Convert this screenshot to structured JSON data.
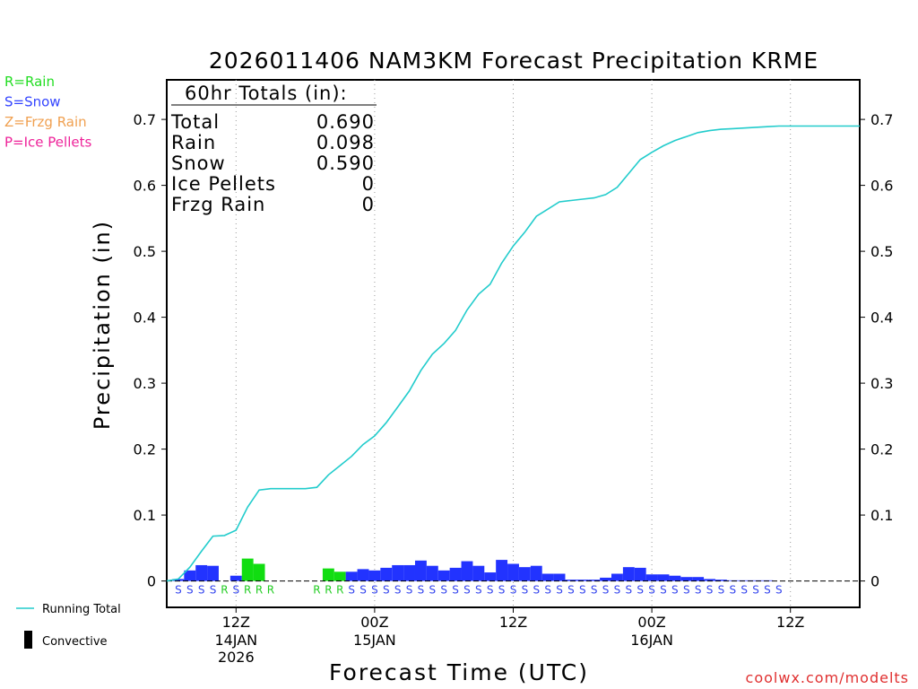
{
  "chart_data": {
    "type": "bar",
    "title": "2026011406 NAM3KM Forecast Precipitation KRME",
    "ylabel": "Precipitation (in)",
    "xlabel": "Forecast Time (UTC)",
    "ylim": [
      -0.04,
      0.76
    ],
    "xlim": [
      6,
      66
    ],
    "yticks": [
      0,
      0.1,
      0.2,
      0.3,
      0.4,
      0.5,
      0.6,
      0.7
    ],
    "ytick_labels": [
      "0",
      "0.1",
      "0.2",
      "0.3",
      "0.4",
      "0.5",
      "0.6",
      "0.7"
    ],
    "xticks": [
      {
        "hour": 12,
        "label": "12Z",
        "date": "14JAN",
        "year": "2026"
      },
      {
        "hour": 24,
        "label": "00Z",
        "date": "15JAN",
        "year": ""
      },
      {
        "hour": 36,
        "label": "12Z",
        "date": "",
        "year": ""
      },
      {
        "hour": 48,
        "label": "00Z",
        "date": "16JAN",
        "year": ""
      },
      {
        "hour": 60,
        "label": "12Z",
        "date": "",
        "year": ""
      }
    ],
    "hourly_precip": [
      {
        "hour": 7,
        "value": 0.003,
        "type": "S"
      },
      {
        "hour": 8,
        "value": 0.016,
        "type": "S"
      },
      {
        "hour": 9,
        "value": 0.024,
        "type": "S"
      },
      {
        "hour": 10,
        "value": 0.023,
        "type": "S"
      },
      {
        "hour": 11,
        "value": 0.0,
        "type": "R"
      },
      {
        "hour": 12,
        "value": 0.008,
        "type": "S"
      },
      {
        "hour": 13,
        "value": 0.034,
        "type": "R"
      },
      {
        "hour": 14,
        "value": 0.026,
        "type": "R"
      },
      {
        "hour": 15,
        "value": 0.0,
        "type": "R"
      },
      {
        "hour": 16,
        "value": 0.0,
        "type": ""
      },
      {
        "hour": 17,
        "value": 0.0,
        "type": ""
      },
      {
        "hour": 18,
        "value": 0.0,
        "type": ""
      },
      {
        "hour": 19,
        "value": 0.0,
        "type": "R"
      },
      {
        "hour": 20,
        "value": 0.019,
        "type": "R"
      },
      {
        "hour": 21,
        "value": 0.014,
        "type": "R"
      },
      {
        "hour": 22,
        "value": 0.014,
        "type": "S"
      },
      {
        "hour": 23,
        "value": 0.018,
        "type": "S"
      },
      {
        "hour": 24,
        "value": 0.016,
        "type": "S"
      },
      {
        "hour": 25,
        "value": 0.02,
        "type": "S"
      },
      {
        "hour": 26,
        "value": 0.024,
        "type": "S"
      },
      {
        "hour": 27,
        "value": 0.024,
        "type": "S"
      },
      {
        "hour": 28,
        "value": 0.031,
        "type": "S"
      },
      {
        "hour": 29,
        "value": 0.023,
        "type": "S"
      },
      {
        "hour": 30,
        "value": 0.016,
        "type": "S"
      },
      {
        "hour": 31,
        "value": 0.02,
        "type": "S"
      },
      {
        "hour": 32,
        "value": 0.03,
        "type": "S"
      },
      {
        "hour": 33,
        "value": 0.023,
        "type": "S"
      },
      {
        "hour": 34,
        "value": 0.013,
        "type": "S"
      },
      {
        "hour": 35,
        "value": 0.032,
        "type": "S"
      },
      {
        "hour": 36,
        "value": 0.026,
        "type": "S"
      },
      {
        "hour": 37,
        "value": 0.021,
        "type": "S"
      },
      {
        "hour": 38,
        "value": 0.023,
        "type": "S"
      },
      {
        "hour": 39,
        "value": 0.011,
        "type": "S"
      },
      {
        "hour": 40,
        "value": 0.011,
        "type": "S"
      },
      {
        "hour": 41,
        "value": 0.002,
        "type": "S"
      },
      {
        "hour": 42,
        "value": 0.002,
        "type": "S"
      },
      {
        "hour": 43,
        "value": 0.002,
        "type": "S"
      },
      {
        "hour": 44,
        "value": 0.005,
        "type": "S"
      },
      {
        "hour": 45,
        "value": 0.011,
        "type": "S"
      },
      {
        "hour": 46,
        "value": 0.021,
        "type": "S"
      },
      {
        "hour": 47,
        "value": 0.02,
        "type": "S"
      },
      {
        "hour": 48,
        "value": 0.01,
        "type": "S"
      },
      {
        "hour": 49,
        "value": 0.01,
        "type": "S"
      },
      {
        "hour": 50,
        "value": 0.008,
        "type": "S"
      },
      {
        "hour": 51,
        "value": 0.006,
        "type": "S"
      },
      {
        "hour": 52,
        "value": 0.006,
        "type": "S"
      },
      {
        "hour": 53,
        "value": 0.003,
        "type": "S"
      },
      {
        "hour": 54,
        "value": 0.002,
        "type": "S"
      },
      {
        "hour": 55,
        "value": 0.001,
        "type": "S"
      },
      {
        "hour": 56,
        "value": 0.001,
        "type": "S"
      },
      {
        "hour": 57,
        "value": 0.001,
        "type": "S"
      },
      {
        "hour": 58,
        "value": 0.001,
        "type": "S"
      }
    ],
    "running_total": [
      [
        6,
        0.0
      ],
      [
        7,
        0.003
      ],
      [
        8,
        0.021
      ],
      [
        9,
        0.045
      ],
      [
        10,
        0.068
      ],
      [
        11,
        0.069
      ],
      [
        12,
        0.077
      ],
      [
        13,
        0.112
      ],
      [
        14,
        0.138
      ],
      [
        15,
        0.14
      ],
      [
        16,
        0.14
      ],
      [
        17,
        0.14
      ],
      [
        18,
        0.14
      ],
      [
        19,
        0.142
      ],
      [
        20,
        0.161
      ],
      [
        21,
        0.175
      ],
      [
        22,
        0.189
      ],
      [
        23,
        0.207
      ],
      [
        24,
        0.22
      ],
      [
        25,
        0.24
      ],
      [
        26,
        0.264
      ],
      [
        27,
        0.288
      ],
      [
        28,
        0.319
      ],
      [
        29,
        0.344
      ],
      [
        30,
        0.36
      ],
      [
        31,
        0.38
      ],
      [
        32,
        0.411
      ],
      [
        33,
        0.435
      ],
      [
        34,
        0.45
      ],
      [
        35,
        0.482
      ],
      [
        36,
        0.508
      ],
      [
        37,
        0.529
      ],
      [
        38,
        0.553
      ],
      [
        39,
        0.564
      ],
      [
        40,
        0.575
      ],
      [
        41,
        0.577
      ],
      [
        42,
        0.579
      ],
      [
        43,
        0.581
      ],
      [
        44,
        0.586
      ],
      [
        45,
        0.597
      ],
      [
        46,
        0.618
      ],
      [
        47,
        0.639
      ],
      [
        48,
        0.65
      ],
      [
        49,
        0.66
      ],
      [
        50,
        0.668
      ],
      [
        51,
        0.674
      ],
      [
        52,
        0.68
      ],
      [
        53,
        0.683
      ],
      [
        54,
        0.685
      ],
      [
        55,
        0.686
      ],
      [
        56,
        0.687
      ],
      [
        57,
        0.688
      ],
      [
        58,
        0.689
      ],
      [
        59,
        0.69
      ],
      [
        60,
        0.69
      ],
      [
        66,
        0.69
      ]
    ],
    "totals_box": {
      "header": "60hr Totals (in):",
      "rows": [
        {
          "label": "Total",
          "value": "0.690"
        },
        {
          "label": "Rain",
          "value": "0.098"
        },
        {
          "label": "Snow",
          "value": "0.590"
        },
        {
          "label": "Ice Pellets",
          "value": "0"
        },
        {
          "label": "Frzg Rain",
          "value": "0"
        }
      ]
    },
    "ptype_letters": [
      {
        "hour": 7,
        "letter": "S"
      },
      {
        "hour": 8,
        "letter": "S"
      },
      {
        "hour": 9,
        "letter": "S"
      },
      {
        "hour": 10,
        "letter": "S"
      },
      {
        "hour": 11,
        "letter": "R"
      },
      {
        "hour": 12,
        "letter": "S"
      },
      {
        "hour": 13,
        "letter": "R"
      },
      {
        "hour": 14,
        "letter": "R"
      },
      {
        "hour": 15,
        "letter": "R"
      },
      {
        "hour": 19,
        "letter": "R"
      },
      {
        "hour": 20,
        "letter": "R"
      },
      {
        "hour": 21,
        "letter": "R"
      },
      {
        "hour": 22,
        "letter": "S"
      },
      {
        "hour": 23,
        "letter": "S"
      },
      {
        "hour": 24,
        "letter": "S"
      },
      {
        "hour": 25,
        "letter": "S"
      },
      {
        "hour": 26,
        "letter": "S"
      },
      {
        "hour": 27,
        "letter": "S"
      },
      {
        "hour": 28,
        "letter": "S"
      },
      {
        "hour": 29,
        "letter": "S"
      },
      {
        "hour": 30,
        "letter": "S"
      },
      {
        "hour": 31,
        "letter": "S"
      },
      {
        "hour": 32,
        "letter": "S"
      },
      {
        "hour": 33,
        "letter": "S"
      },
      {
        "hour": 34,
        "letter": "S"
      },
      {
        "hour": 35,
        "letter": "S"
      },
      {
        "hour": 36,
        "letter": "S"
      },
      {
        "hour": 37,
        "letter": "S"
      },
      {
        "hour": 38,
        "letter": "S"
      },
      {
        "hour": 39,
        "letter": "S"
      },
      {
        "hour": 40,
        "letter": "S"
      },
      {
        "hour": 41,
        "letter": "S"
      },
      {
        "hour": 42,
        "letter": "S"
      },
      {
        "hour": 43,
        "letter": "S"
      },
      {
        "hour": 44,
        "letter": "S"
      },
      {
        "hour": 45,
        "letter": "S"
      },
      {
        "hour": 46,
        "letter": "S"
      },
      {
        "hour": 47,
        "letter": "S"
      },
      {
        "hour": 48,
        "letter": "S"
      },
      {
        "hour": 49,
        "letter": "S"
      },
      {
        "hour": 50,
        "letter": "S"
      },
      {
        "hour": 51,
        "letter": "S"
      },
      {
        "hour": 52,
        "letter": "S"
      },
      {
        "hour": 53,
        "letter": "S"
      },
      {
        "hour": 54,
        "letter": "S"
      },
      {
        "hour": 55,
        "letter": "S"
      },
      {
        "hour": 56,
        "letter": "S"
      },
      {
        "hour": 57,
        "letter": "S"
      },
      {
        "hour": 58,
        "letter": "S"
      },
      {
        "hour": 59,
        "letter": "S"
      }
    ]
  },
  "ptype_legend": [
    {
      "text": "R=Rain",
      "color": "#22dd22"
    },
    {
      "text": "S=Snow",
      "color": "#3344ff"
    },
    {
      "text": "Z=Frzg Rain",
      "color": "#f0a050"
    },
    {
      "text": "P=Ice Pellets",
      "color": "#ee2299"
    }
  ],
  "line_legend": {
    "running_total": "Running Total",
    "convective": "Convective"
  },
  "credit": "coolwx.com/modelts",
  "colors": {
    "rain": "#11dd11",
    "snow": "#2233ff",
    "running_total": "#22cccc",
    "grid": "#999999",
    "rain_letter": "#22cc22",
    "snow_letter": "#3344ee"
  }
}
